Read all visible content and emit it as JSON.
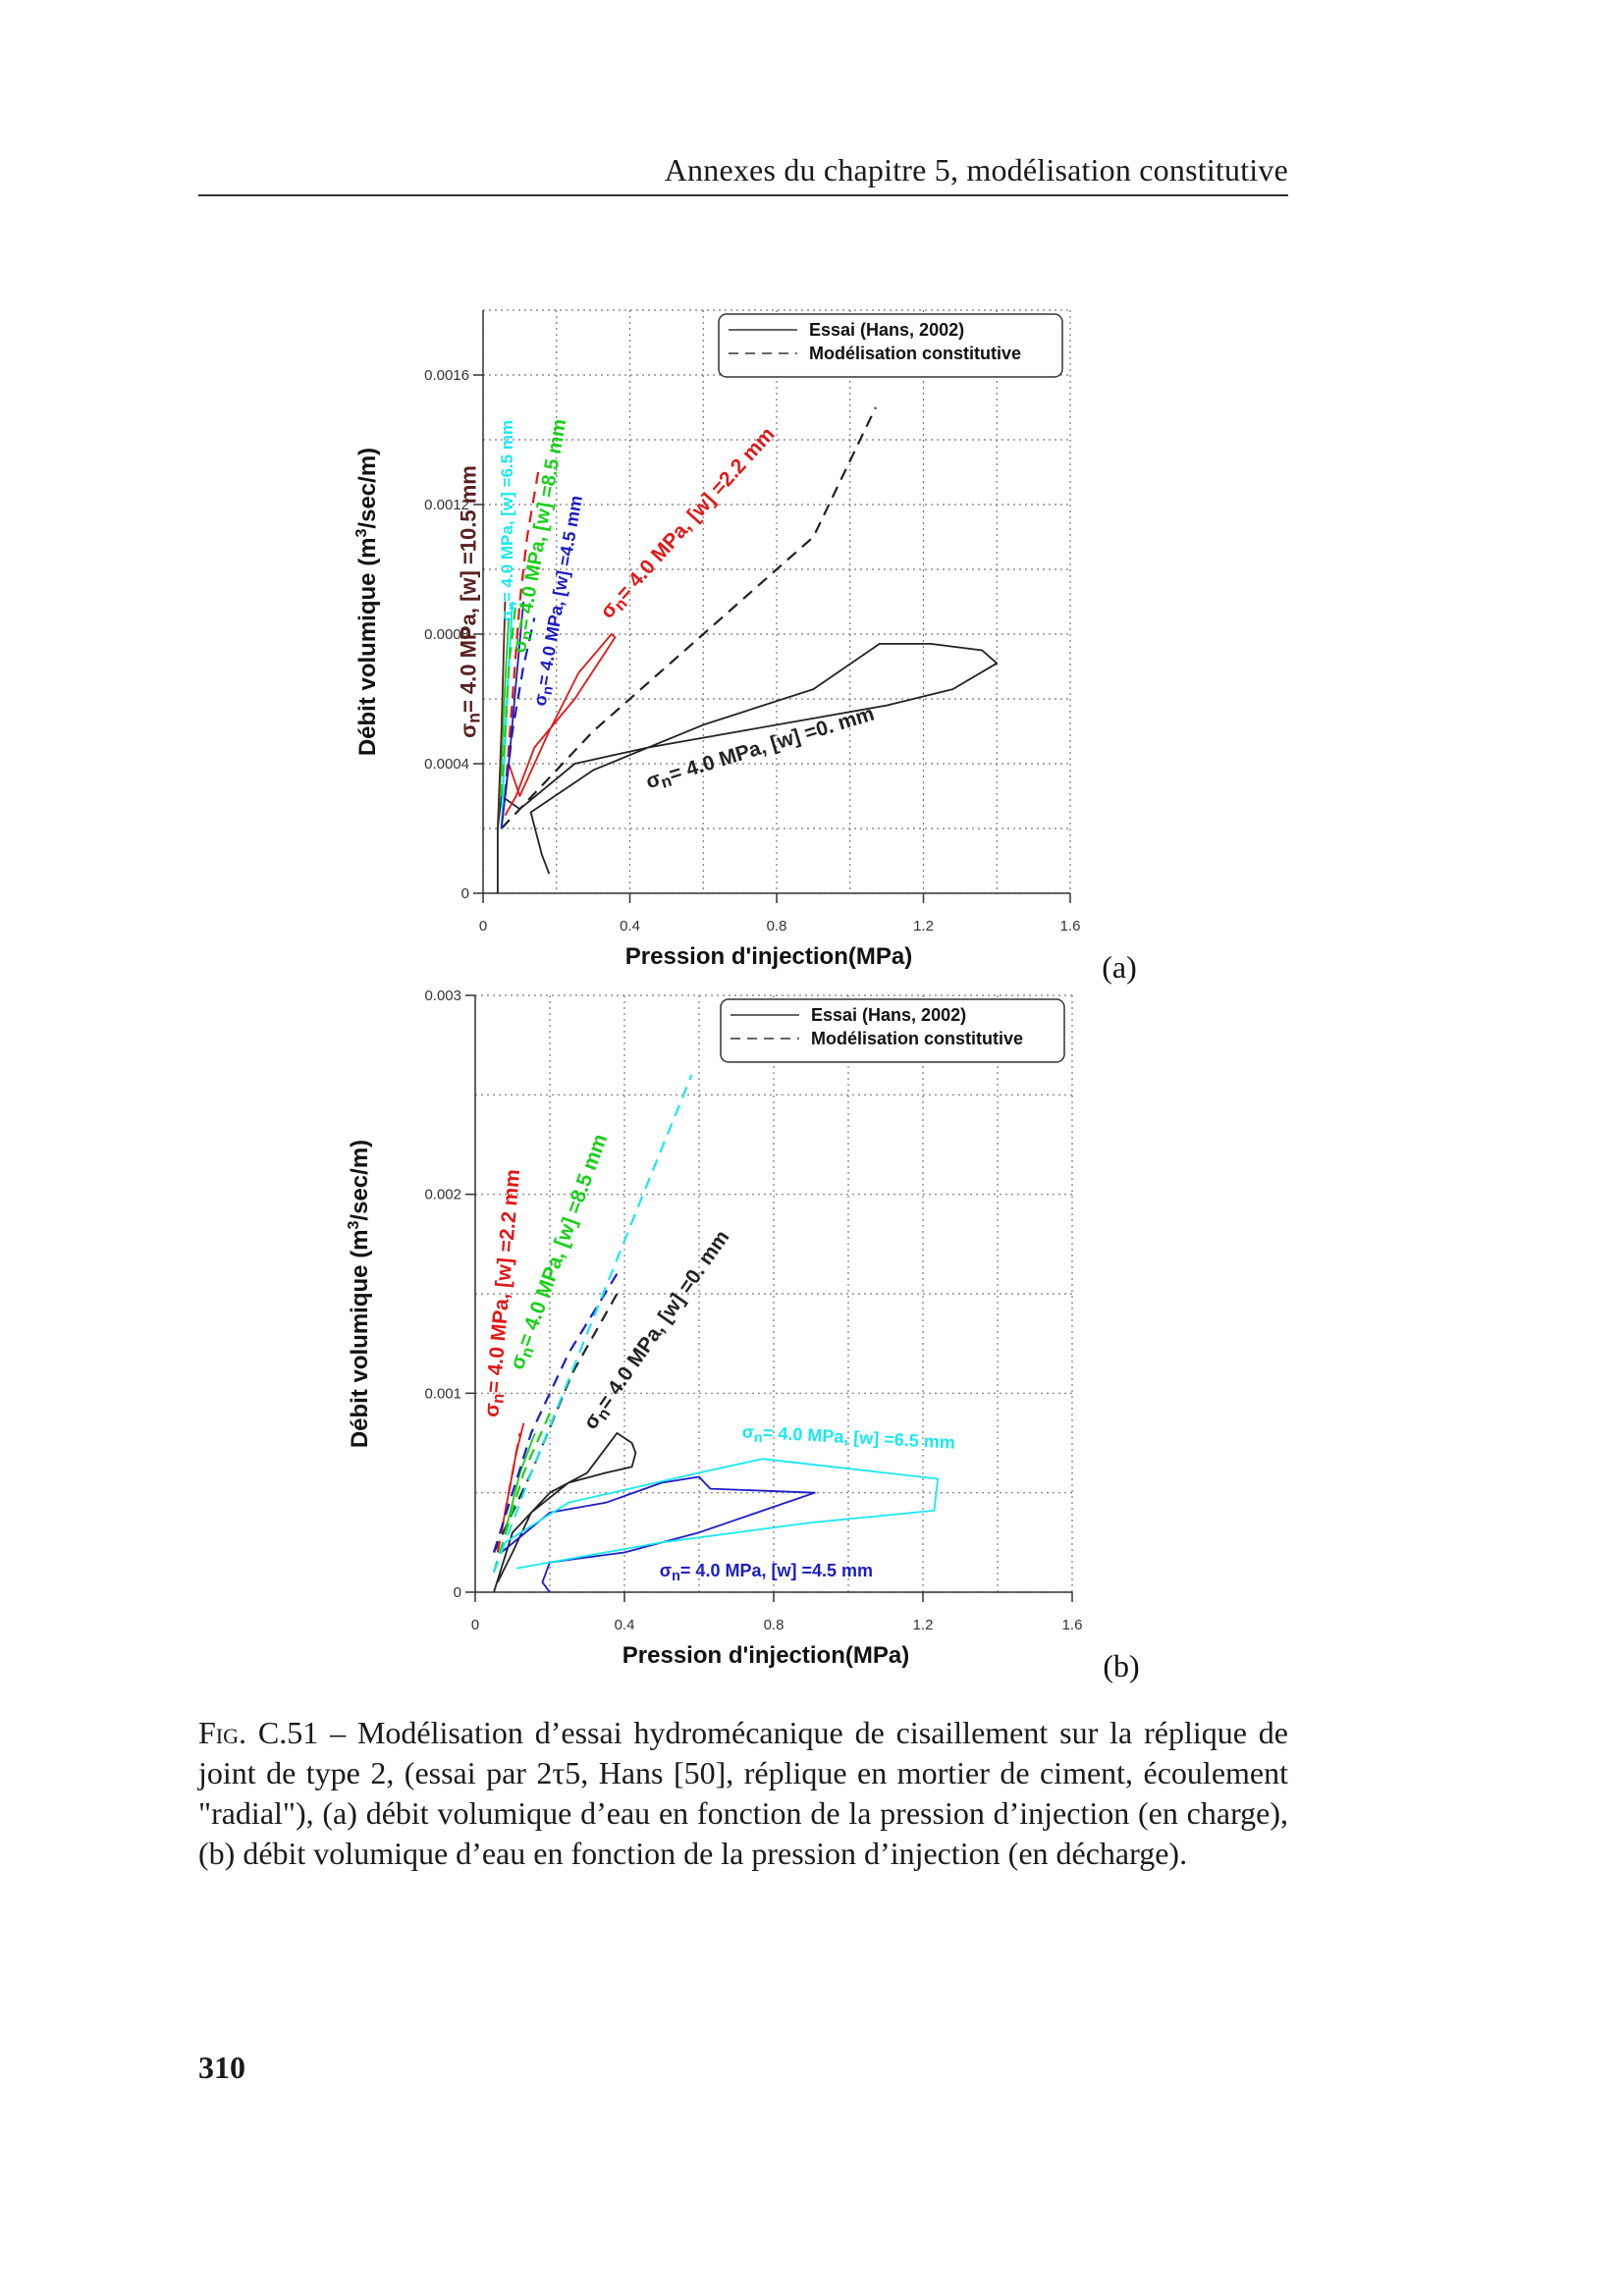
{
  "running_head": "Annexes du chapitre 5, modélisation constitutive",
  "page_number": "310",
  "caption": {
    "label": "Fig. C.51",
    "text": " – Modélisation d’essai hydromécanique de cisaillement sur la réplique de joint de type 2, (essai par 2τ5, Hans [50], réplique en mortier de ciment, écoulement \"radial\"), (a) débit volumique d’eau en fonction de la pression d’injection (en charge), (b) débit volumique d’eau en fonction de la pression d’injection (en décharge)."
  },
  "colors": {
    "black": "#222222",
    "red": "#e01818",
    "cyan": "#18e8f0",
    "green": "#19d019",
    "blue": "#1c1cc8",
    "brown": "#5a2020",
    "grid": "#777777"
  },
  "chart_data": [
    {
      "type": "line",
      "panel_label": "(a)",
      "xlabel": "Pression d'injection(MPa)",
      "ylabel": "Débit volumique (m³/sec/m)",
      "xlim": [
        0,
        1.6
      ],
      "ylim": [
        0,
        0.0018
      ],
      "x_ticks": [
        "0",
        "0.4",
        "0.8",
        "1.2",
        "1.6"
      ],
      "y_ticks": [
        "0",
        "0.0004",
        "0.0008",
        "0.0012",
        "0.0016"
      ],
      "grid": true,
      "legend_position": "top-right",
      "legend": [
        {
          "label": "Essai (Hans, 2002)",
          "style": "solid"
        },
        {
          "label": "Modélisation constitutive",
          "style": "dashed"
        }
      ],
      "series": [
        {
          "color": "black",
          "style": "solid",
          "points": [
            [
              0.04,
              0.0
            ],
            [
              0.04,
              0.0002
            ],
            [
              0.05,
              0.0003
            ],
            [
              0.1,
              0.00026
            ],
            [
              0.25,
              0.0004
            ],
            [
              0.45,
              0.00045
            ],
            [
              0.7,
              0.0005
            ],
            [
              1.1,
              0.00058
            ],
            [
              1.28,
              0.00063
            ],
            [
              1.4,
              0.00071
            ],
            [
              1.36,
              0.00075
            ],
            [
              1.22,
              0.00077
            ],
            [
              1.08,
              0.00077
            ],
            [
              0.9,
              0.00063
            ],
            [
              0.6,
              0.00052
            ],
            [
              0.3,
              0.00038
            ],
            [
              0.13,
              0.00025
            ],
            [
              0.16,
              0.00012
            ],
            [
              0.18,
              6e-05
            ]
          ]
        },
        {
          "color": "black",
          "style": "dashed",
          "points": [
            [
              0.05,
              0.0002
            ],
            [
              0.3,
              0.0005
            ],
            [
              0.6,
              0.0008
            ],
            [
              0.9,
              0.0011
            ],
            [
              1.07,
              0.0015
            ]
          ]
        },
        {
          "color": "red",
          "style": "solid",
          "points": [
            [
              0.05,
              0.0002
            ],
            [
              0.07,
              0.0004
            ],
            [
              0.1,
              0.0003
            ],
            [
              0.18,
              0.0005
            ],
            [
              0.26,
              0.00068
            ],
            [
              0.35,
              0.0008
            ],
            [
              0.36,
              0.00079
            ],
            [
              0.25,
              0.0006
            ],
            [
              0.14,
              0.00045
            ],
            [
              0.09,
              0.0003
            ],
            [
              0.06,
              0.00024
            ]
          ]
        },
        {
          "color": "red",
          "style": "dashed",
          "points": [
            [
              0.06,
              0.0003
            ],
            [
              0.08,
              0.0006
            ],
            [
              0.1,
              0.0009
            ],
            [
              0.12,
              0.0011
            ],
            [
              0.15,
              0.0013
            ]
          ]
        },
        {
          "color": "cyan",
          "style": "solid",
          "points": [
            [
              0.05,
              0.0002
            ],
            [
              0.06,
              0.00045
            ],
            [
              0.07,
              0.0007
            ],
            [
              0.08,
              0.0009
            ]
          ]
        },
        {
          "color": "cyan",
          "style": "dashed",
          "points": [
            [
              0.05,
              0.0002
            ],
            [
              0.06,
              0.0005
            ],
            [
              0.07,
              0.0007
            ],
            [
              0.08,
              0.0009
            ]
          ]
        },
        {
          "color": "green",
          "style": "solid",
          "points": [
            [
              0.04,
              0.0002
            ],
            [
              0.05,
              0.0004
            ],
            [
              0.06,
              0.00065
            ],
            [
              0.07,
              0.00085
            ]
          ]
        },
        {
          "color": "green",
          "style": "dashed",
          "points": [
            [
              0.05,
              0.0003
            ],
            [
              0.07,
              0.0007
            ],
            [
              0.09,
              0.0009
            ]
          ]
        },
        {
          "color": "blue",
          "style": "solid",
          "points": [
            [
              0.05,
              0.0002
            ],
            [
              0.07,
              0.0004
            ],
            [
              0.09,
              0.00065
            ],
            [
              0.11,
              0.0009
            ]
          ]
        },
        {
          "color": "blue",
          "style": "dashed",
          "points": [
            [
              0.06,
              0.0003
            ],
            [
              0.08,
              0.0005
            ],
            [
              0.11,
              0.0007
            ],
            [
              0.14,
              0.00085
            ]
          ]
        },
        {
          "color": "brown",
          "style": "solid",
          "points": [
            [
              0.04,
              0.0002
            ],
            [
              0.05,
              0.0005
            ],
            [
              0.06,
              0.0009
            ]
          ]
        }
      ],
      "annotations": [
        {
          "text": "σn= 4.0 MPa, [w] =10.5 mm",
          "color": "brown",
          "x": -0.02,
          "y": 0.0009,
          "angle": -90,
          "size": 22
        },
        {
          "text": "σn= 4.0 MPa, [w] =6.5 mm",
          "color": "cyan",
          "x": 0.08,
          "y": 0.00115,
          "angle": -90,
          "size": 17
        },
        {
          "text": "σn= 4.0 MPa, [w] =8.5 mm",
          "color": "green",
          "x": 0.17,
          "y": 0.0011,
          "angle": -80,
          "size": 20
        },
        {
          "text": "σn= 4.0 MPa, [w] =4.5 mm",
          "color": "blue",
          "x": 0.22,
          "y": 0.0009,
          "angle": -80,
          "size": 18
        },
        {
          "text": "σn= 4.0 MPa, [w] =2.2 mm",
          "color": "red",
          "x": 0.57,
          "y": 0.00113,
          "angle": -48,
          "size": 21
        },
        {
          "text": "σn= 4.0 MPa, [w] =0. mm",
          "color": "black",
          "x": 0.76,
          "y": 0.00043,
          "angle": -17,
          "size": 21
        }
      ]
    },
    {
      "type": "line",
      "panel_label": "(b)",
      "xlabel": "Pression d'injection(MPa)",
      "ylabel": "Débit volumique (m³/sec/m)",
      "xlim": [
        0,
        1.6
      ],
      "ylim": [
        0,
        0.003
      ],
      "x_ticks": [
        "0",
        "0.4",
        "0.8",
        "1.2",
        "1.6"
      ],
      "y_ticks": [
        "0",
        "0.001",
        "0.002",
        "0.003"
      ],
      "grid": true,
      "legend_position": "top-right",
      "legend": [
        {
          "label": "Essai (Hans, 2002)",
          "style": "solid"
        },
        {
          "label": "Modélisation constitutive",
          "style": "dashed"
        }
      ],
      "series": [
        {
          "color": "black",
          "style": "solid",
          "points": [
            [
              0.05,
              0.0
            ],
            [
              0.1,
              0.0003
            ],
            [
              0.2,
              0.0005
            ],
            [
              0.3,
              0.0006
            ],
            [
              0.38,
              0.0008
            ],
            [
              0.42,
              0.00075
            ],
            [
              0.43,
              0.0007
            ],
            [
              0.42,
              0.00063
            ],
            [
              0.35,
              0.0006
            ],
            [
              0.25,
              0.00055
            ],
            [
              0.15,
              0.0004
            ],
            [
              0.1,
              0.0002
            ],
            [
              0.06,
              5e-05
            ]
          ]
        },
        {
          "color": "black",
          "style": "dashed",
          "points": [
            [
              0.05,
              0.0002
            ],
            [
              0.15,
              0.0006
            ],
            [
              0.26,
              0.0011
            ],
            [
              0.38,
              0.0015
            ]
          ]
        },
        {
          "color": "red",
          "style": "solid",
          "points": [
            [
              0.07,
              0.0003
            ],
            [
              0.09,
              0.0005
            ],
            [
              0.11,
              0.0007
            ],
            [
              0.13,
              0.00085
            ]
          ]
        },
        {
          "color": "red",
          "style": "dashed",
          "points": [
            [
              0.06,
              0.0002
            ],
            [
              0.09,
              0.0005
            ],
            [
              0.12,
              0.0008
            ]
          ]
        },
        {
          "color": "green",
          "style": "solid",
          "points": [
            [
              0.08,
              0.0003
            ],
            [
              0.12,
              0.0006
            ],
            [
              0.16,
              0.0008
            ]
          ]
        },
        {
          "color": "green",
          "style": "dashed",
          "points": [
            [
              0.05,
              0.0001
            ],
            [
              0.13,
              0.0006
            ],
            [
              0.2,
              0.0009
            ]
          ]
        },
        {
          "color": "blue",
          "style": "solid",
          "points": [
            [
              0.07,
              0.0002
            ],
            [
              0.2,
              0.0004
            ],
            [
              0.35,
              0.00045
            ],
            [
              0.5,
              0.00055
            ],
            [
              0.6,
              0.00058
            ],
            [
              0.63,
              0.00052
            ],
            [
              0.91,
              0.0005
            ],
            [
              0.6,
              0.0003
            ],
            [
              0.4,
              0.0002
            ],
            [
              0.2,
              0.00015
            ],
            [
              0.18,
              5e-05
            ],
            [
              0.2,
              0.0
            ]
          ]
        },
        {
          "color": "blue",
          "style": "dashed",
          "points": [
            [
              0.05,
              0.0002
            ],
            [
              0.15,
              0.0008
            ],
            [
              0.25,
              0.0012
            ],
            [
              0.38,
              0.0016
            ]
          ]
        },
        {
          "color": "cyan",
          "style": "solid",
          "points": [
            [
              0.08,
              0.00025
            ],
            [
              0.25,
              0.00045
            ],
            [
              0.6,
              0.0006
            ],
            [
              0.77,
              0.00067
            ],
            [
              1.24,
              0.00057
            ],
            [
              1.23,
              0.00041
            ],
            [
              0.9,
              0.00035
            ],
            [
              0.5,
              0.00025
            ],
            [
              0.2,
              0.00015
            ],
            [
              0.11,
              0.00012
            ]
          ]
        },
        {
          "color": "cyan",
          "style": "dashed",
          "points": [
            [
              0.05,
              0.0001
            ],
            [
              0.15,
              0.0006
            ],
            [
              0.3,
              0.0013
            ],
            [
              0.45,
              0.002
            ],
            [
              0.58,
              0.0026
            ]
          ]
        }
      ],
      "annotations": [
        {
          "text": "σn= 4.0 MPa, [w] =2.2 mm",
          "color": "red",
          "x": 0.09,
          "y": 0.0015,
          "angle": -85,
          "size": 21
        },
        {
          "text": "σn= 4.0 MPa, [w] =8.5 mm",
          "color": "green",
          "x": 0.24,
          "y": 0.0017,
          "angle": -70,
          "size": 21
        },
        {
          "text": "σn= 4.0 MPa, [w] =0. mm",
          "color": "black",
          "x": 0.5,
          "y": 0.0013,
          "angle": -55,
          "size": 21
        },
        {
          "text": "σn= 4.0 MPa, [w] =6.5 mm",
          "color": "cyan",
          "x": 1.0,
          "y": 0.00075,
          "angle": 3,
          "size": 18
        },
        {
          "text": "σn= 4.0 MPa, [w] =4.5 mm",
          "color": "blue",
          "x": 0.78,
          "y": 8e-05,
          "angle": 0,
          "size": 18
        }
      ]
    }
  ]
}
